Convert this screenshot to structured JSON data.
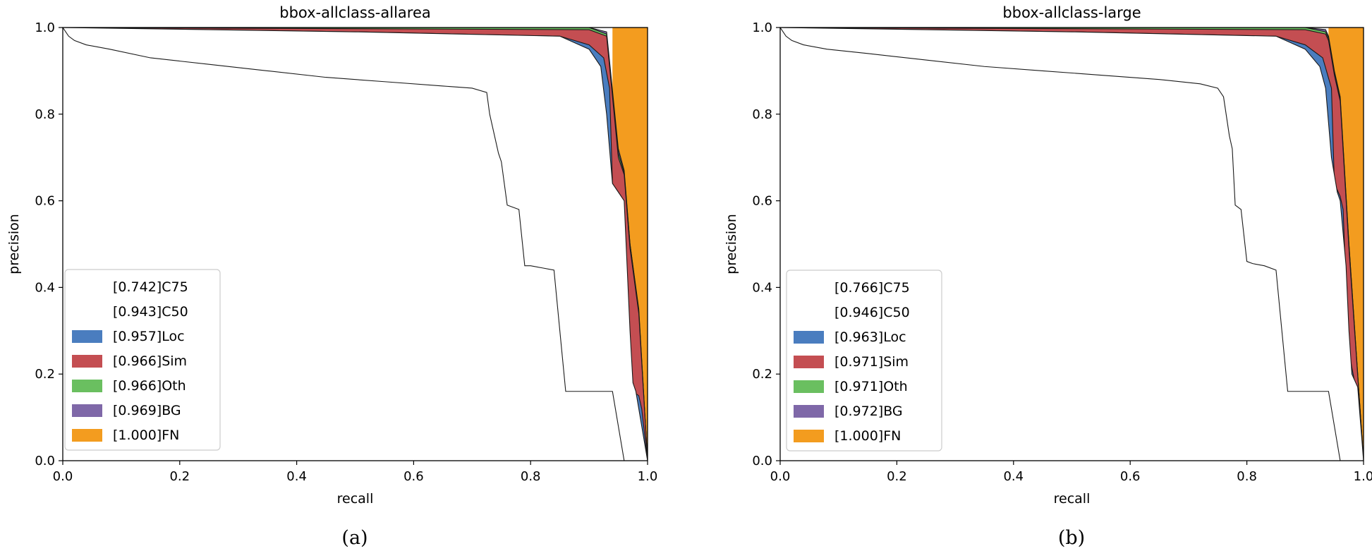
{
  "figure": {
    "captions": [
      "(a)",
      "(b)"
    ]
  },
  "chart_data": [
    {
      "type": "area",
      "title": "bbox-allclass-allarea",
      "xlabel": "recall",
      "ylabel": "precision",
      "xlim": [
        0.0,
        1.0
      ],
      "ylim": [
        0.0,
        1.0
      ],
      "xticks": [
        "0.0",
        "0.2",
        "0.4",
        "0.6",
        "0.8",
        "1.0"
      ],
      "yticks": [
        "0.0",
        "0.2",
        "0.4",
        "0.6",
        "0.8",
        "1.0"
      ],
      "legend_position": "lower-left",
      "legend": [
        {
          "label": "[0.742]C75",
          "color": "#ffffff"
        },
        {
          "label": "[0.943]C50",
          "color": "#ffffff"
        },
        {
          "label": "[0.957]Loc",
          "color": "#4a7dbf"
        },
        {
          "label": "[0.966]Sim",
          "color": "#c44e52"
        },
        {
          "label": "[0.966]Oth",
          "color": "#6abf60"
        },
        {
          "label": "[0.969]BG",
          "color": "#7f68a8"
        },
        {
          "label": "[1.000]FN",
          "color": "#f39c1f"
        }
      ],
      "series": [
        {
          "name": "FN",
          "color": "#f39c1f",
          "x": [
            0.94,
            1.0
          ],
          "y": [
            1.0,
            1.0
          ]
        },
        {
          "name": "BG",
          "color": "#7f68a8",
          "x": [
            0.0,
            0.9,
            0.93,
            0.95,
            0.96,
            0.97,
            0.985,
            1.0
          ],
          "y": [
            1.0,
            1.0,
            0.99,
            0.72,
            0.67,
            0.5,
            0.35,
            0.0
          ]
        },
        {
          "name": "Oth",
          "color": "#6abf60",
          "x": [
            0.0,
            0.9,
            0.93,
            0.95,
            0.96,
            0.97,
            0.985,
            1.0
          ],
          "y": [
            1.0,
            1.0,
            0.985,
            0.71,
            0.665,
            0.5,
            0.345,
            0.0
          ]
        },
        {
          "name": "Sim",
          "color": "#c44e52",
          "x": [
            0.0,
            0.9,
            0.93,
            0.95,
            0.96,
            0.97,
            0.985,
            1.0
          ],
          "y": [
            1.0,
            0.995,
            0.98,
            0.7,
            0.66,
            0.49,
            0.34,
            0.0
          ]
        },
        {
          "name": "Loc",
          "color": "#4a7dbf",
          "x": [
            0.0,
            0.5,
            0.85,
            0.9,
            0.925,
            0.935,
            0.94,
            0.955,
            0.96,
            0.97,
            0.975,
            0.985,
            0.99,
            1.0
          ],
          "y": [
            1.0,
            0.99,
            0.98,
            0.96,
            0.93,
            0.86,
            0.64,
            0.61,
            0.58,
            0.25,
            0.16,
            0.15,
            0.12,
            0.0
          ]
        },
        {
          "name": "C50",
          "color": "#ffffff",
          "x": [
            0.0,
            0.5,
            0.85,
            0.9,
            0.92,
            0.93,
            0.94,
            0.95,
            0.96,
            0.965,
            0.97,
            0.975,
            0.98,
            1.0
          ],
          "y": [
            1.0,
            0.99,
            0.98,
            0.95,
            0.91,
            0.8,
            0.64,
            0.62,
            0.6,
            0.45,
            0.3,
            0.18,
            0.16,
            0.0
          ]
        },
        {
          "name": "C75",
          "color": "#ffffff",
          "x": [
            0.0,
            0.01,
            0.02,
            0.04,
            0.08,
            0.15,
            0.25,
            0.35,
            0.45,
            0.55,
            0.65,
            0.7,
            0.725,
            0.73,
            0.74,
            0.745,
            0.75,
            0.76,
            0.78,
            0.79,
            0.8,
            0.82,
            0.84,
            0.85,
            0.86,
            0.9,
            0.94,
            0.96
          ],
          "y": [
            1.0,
            0.98,
            0.97,
            0.96,
            0.95,
            0.93,
            0.915,
            0.9,
            0.885,
            0.875,
            0.865,
            0.86,
            0.85,
            0.8,
            0.74,
            0.71,
            0.69,
            0.59,
            0.58,
            0.45,
            0.45,
            0.445,
            0.44,
            0.3,
            0.16,
            0.16,
            0.16,
            0.0
          ]
        }
      ]
    },
    {
      "type": "area",
      "title": "bbox-allclass-large",
      "xlabel": "recall",
      "ylabel": "precision",
      "xlim": [
        0.0,
        1.0
      ],
      "ylim": [
        0.0,
        1.0
      ],
      "xticks": [
        "0.0",
        "0.2",
        "0.4",
        "0.6",
        "0.8",
        "1.0"
      ],
      "yticks": [
        "0.0",
        "0.2",
        "0.4",
        "0.6",
        "0.8",
        "1.0"
      ],
      "legend_position": "lower-left",
      "legend": [
        {
          "label": "[0.766]C75",
          "color": "#ffffff"
        },
        {
          "label": "[0.946]C50",
          "color": "#ffffff"
        },
        {
          "label": "[0.963]Loc",
          "color": "#4a7dbf"
        },
        {
          "label": "[0.971]Sim",
          "color": "#c44e52"
        },
        {
          "label": "[0.971]Oth",
          "color": "#6abf60"
        },
        {
          "label": "[0.972]BG",
          "color": "#7f68a8"
        },
        {
          "label": "[1.000]FN",
          "color": "#f39c1f"
        }
      ],
      "series": [
        {
          "name": "FN",
          "color": "#f39c1f",
          "x": [
            0.94,
            1.0
          ],
          "y": [
            1.0,
            1.0
          ]
        },
        {
          "name": "BG",
          "color": "#7f68a8",
          "x": [
            0.0,
            0.9,
            0.935,
            0.94,
            0.95,
            0.96,
            0.975,
            1.0
          ],
          "y": [
            1.0,
            1.0,
            0.995,
            0.98,
            0.9,
            0.84,
            0.5,
            0.0
          ]
        },
        {
          "name": "Oth",
          "color": "#6abf60",
          "x": [
            0.0,
            0.9,
            0.935,
            0.94,
            0.95,
            0.96,
            0.975,
            1.0
          ],
          "y": [
            1.0,
            1.0,
            0.99,
            0.975,
            0.895,
            0.835,
            0.5,
            0.0
          ]
        },
        {
          "name": "Sim",
          "color": "#c44e52",
          "x": [
            0.0,
            0.9,
            0.935,
            0.94,
            0.95,
            0.96,
            0.975,
            1.0
          ],
          "y": [
            1.0,
            0.995,
            0.985,
            0.97,
            0.89,
            0.83,
            0.49,
            0.0
          ]
        },
        {
          "name": "Loc",
          "color": "#4a7dbf",
          "x": [
            0.0,
            0.5,
            0.85,
            0.9,
            0.93,
            0.945,
            0.95,
            0.96,
            0.965,
            0.97,
            0.975,
            0.985,
            0.99,
            1.0
          ],
          "y": [
            1.0,
            0.99,
            0.98,
            0.96,
            0.93,
            0.86,
            0.64,
            0.61,
            0.58,
            0.4,
            0.25,
            0.18,
            0.16,
            0.0
          ]
        },
        {
          "name": "C50",
          "color": "#ffffff",
          "x": [
            0.0,
            0.5,
            0.85,
            0.9,
            0.925,
            0.935,
            0.945,
            0.955,
            0.96,
            0.97,
            0.975,
            0.98,
            0.99,
            1.0
          ],
          "y": [
            1.0,
            0.99,
            0.98,
            0.95,
            0.91,
            0.86,
            0.7,
            0.62,
            0.6,
            0.45,
            0.3,
            0.2,
            0.17,
            0.0
          ]
        },
        {
          "name": "C75",
          "color": "#ffffff",
          "x": [
            0.0,
            0.01,
            0.02,
            0.04,
            0.08,
            0.15,
            0.25,
            0.35,
            0.45,
            0.55,
            0.65,
            0.72,
            0.75,
            0.76,
            0.77,
            0.775,
            0.78,
            0.79,
            0.8,
            0.81,
            0.83,
            0.85,
            0.86,
            0.87,
            0.9,
            0.94,
            0.96
          ],
          "y": [
            1.0,
            0.98,
            0.97,
            0.96,
            0.95,
            0.94,
            0.925,
            0.91,
            0.9,
            0.89,
            0.88,
            0.87,
            0.86,
            0.84,
            0.75,
            0.72,
            0.59,
            0.58,
            0.46,
            0.455,
            0.45,
            0.44,
            0.3,
            0.16,
            0.16,
            0.16,
            0.0
          ]
        }
      ]
    }
  ]
}
